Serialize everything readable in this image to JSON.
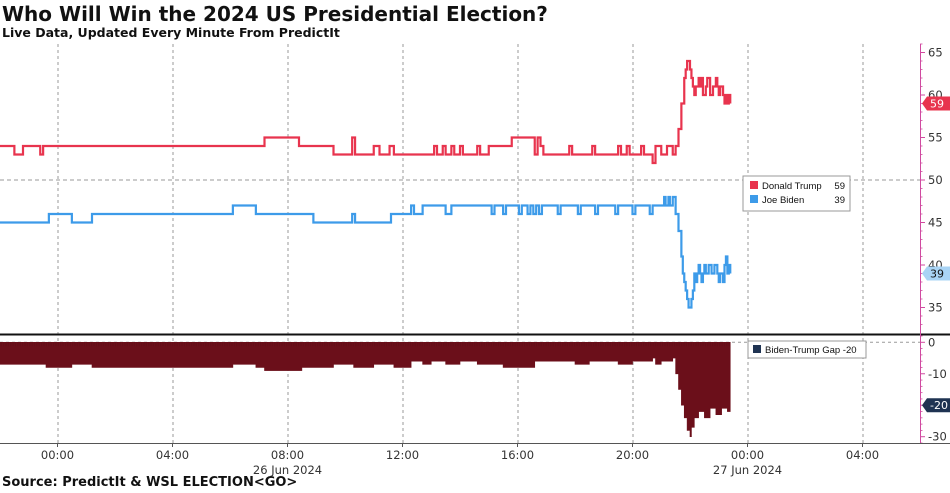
{
  "header": {
    "title": "Who Will Win the 2024 US Presidential Election?",
    "subtitle": "Live Data, Updated Every Minute From PredictIt"
  },
  "footer": {
    "source": "Source: PredictIt & WSL ELECTION<GO>"
  },
  "colors": {
    "trump": "#e8344e",
    "biden": "#3d9be9",
    "gap": "#6b0f1a",
    "grid": "#9a9a9a",
    "axis_magenta": "#d04aa0"
  },
  "chart_data": [
    {
      "type": "line",
      "title": "Who Will Win the 2024 US Presidential Election?",
      "x_unit": "hours since 00:00 26 Jun 2024",
      "x_range": [
        -2,
        30
      ],
      "y_range": [
        32,
        66
      ],
      "y_ticks": [
        35,
        40,
        45,
        50,
        55,
        60,
        65
      ],
      "x_tick_labels": [
        "00:00",
        "04:00",
        "08:00",
        "12:00",
        "16:00",
        "20:00",
        "00:00",
        "04:00"
      ],
      "x_ticks": [
        0,
        4,
        8,
        12,
        16,
        20,
        24,
        28
      ],
      "date_labels": [
        {
          "x": 8,
          "label": "26 Jun 2024"
        },
        {
          "x": 24,
          "label": "27 Jun 2024"
        }
      ],
      "reference_line": 50,
      "series": [
        {
          "name": "Donald Trump",
          "last_value": 59,
          "points": [
            [
              -2,
              54
            ],
            [
              -1.5,
              53
            ],
            [
              -1.2,
              54
            ],
            [
              -0.6,
              53
            ],
            [
              -0.5,
              54
            ],
            [
              7.1,
              54
            ],
            [
              7.2,
              55
            ],
            [
              8.3,
              55
            ],
            [
              8.4,
              54
            ],
            [
              9.5,
              54
            ],
            [
              9.6,
              53
            ],
            [
              10.2,
              53
            ],
            [
              10.25,
              55
            ],
            [
              10.35,
              53
            ],
            [
              10.9,
              53
            ],
            [
              11.0,
              54
            ],
            [
              11.2,
              53
            ],
            [
              11.5,
              53
            ],
            [
              11.55,
              54
            ],
            [
              11.7,
              53
            ],
            [
              13.0,
              53
            ],
            [
              13.1,
              54
            ],
            [
              13.2,
              53
            ],
            [
              13.4,
              54
            ],
            [
              13.5,
              53
            ],
            [
              13.7,
              54
            ],
            [
              13.8,
              53
            ],
            [
              14.0,
              54
            ],
            [
              14.1,
              53
            ],
            [
              14.5,
              53
            ],
            [
              14.6,
              54
            ],
            [
              14.7,
              53
            ],
            [
              15.0,
              54
            ],
            [
              15.7,
              54
            ],
            [
              15.8,
              55
            ],
            [
              16.5,
              55
            ],
            [
              16.6,
              53
            ],
            [
              16.7,
              55
            ],
            [
              16.8,
              54
            ],
            [
              16.9,
              53
            ],
            [
              17.7,
              53
            ],
            [
              17.8,
              54
            ],
            [
              17.9,
              53
            ],
            [
              18.5,
              53
            ],
            [
              18.6,
              54
            ],
            [
              18.7,
              53
            ],
            [
              19.4,
              53
            ],
            [
              19.5,
              54
            ],
            [
              19.6,
              53
            ],
            [
              19.8,
              54
            ],
            [
              19.9,
              53
            ],
            [
              20.2,
              53
            ],
            [
              20.3,
              54
            ],
            [
              20.4,
              53
            ],
            [
              20.6,
              53
            ],
            [
              20.7,
              52
            ],
            [
              20.8,
              54
            ],
            [
              21.0,
              53
            ],
            [
              21.2,
              54
            ],
            [
              21.4,
              53
            ],
            [
              21.5,
              54
            ],
            [
              21.6,
              56
            ],
            [
              21.7,
              59
            ],
            [
              21.8,
              62
            ],
            [
              21.85,
              63
            ],
            [
              21.9,
              64
            ],
            [
              22.0,
              63
            ],
            [
              22.05,
              62
            ],
            [
              22.1,
              61
            ],
            [
              22.15,
              60
            ],
            [
              22.2,
              61
            ],
            [
              22.3,
              62
            ],
            [
              22.35,
              61
            ],
            [
              22.4,
              62
            ],
            [
              22.45,
              60
            ],
            [
              22.55,
              61
            ],
            [
              22.6,
              62
            ],
            [
              22.7,
              60
            ],
            [
              22.8,
              61
            ],
            [
              22.9,
              62
            ],
            [
              22.95,
              61
            ],
            [
              23.0,
              60
            ],
            [
              23.05,
              61
            ],
            [
              23.15,
              60
            ],
            [
              23.2,
              59
            ],
            [
              23.25,
              60
            ],
            [
              23.3,
              59
            ],
            [
              23.35,
              60
            ],
            [
              23.4,
              59
            ]
          ]
        },
        {
          "name": "Joe Biden",
          "last_value": 39,
          "points": [
            [
              -2,
              45
            ],
            [
              -0.4,
              45
            ],
            [
              -0.3,
              46
            ],
            [
              0.4,
              46
            ],
            [
              0.5,
              45
            ],
            [
              1.1,
              45
            ],
            [
              1.2,
              46
            ],
            [
              6.0,
              46
            ],
            [
              6.1,
              47
            ],
            [
              6.8,
              47
            ],
            [
              6.9,
              46
            ],
            [
              8.8,
              46
            ],
            [
              8.9,
              45
            ],
            [
              10.2,
              45
            ],
            [
              10.25,
              46
            ],
            [
              10.35,
              45
            ],
            [
              11.5,
              45
            ],
            [
              11.6,
              46
            ],
            [
              12.2,
              46
            ],
            [
              12.3,
              47
            ],
            [
              12.4,
              46
            ],
            [
              12.6,
              46
            ],
            [
              12.7,
              47
            ],
            [
              13.4,
              47
            ],
            [
              13.5,
              46
            ],
            [
              13.6,
              46
            ],
            [
              13.7,
              47
            ],
            [
              15.0,
              47
            ],
            [
              15.1,
              46
            ],
            [
              15.2,
              47
            ],
            [
              15.4,
              47
            ],
            [
              15.5,
              46
            ],
            [
              15.6,
              47
            ],
            [
              16.0,
              47
            ],
            [
              16.05,
              46
            ],
            [
              16.15,
              47
            ],
            [
              16.3,
              47
            ],
            [
              16.35,
              46
            ],
            [
              16.45,
              47
            ],
            [
              16.55,
              46
            ],
            [
              16.65,
              47
            ],
            [
              16.75,
              46
            ],
            [
              16.85,
              47
            ],
            [
              17.3,
              47
            ],
            [
              17.4,
              46
            ],
            [
              17.5,
              47
            ],
            [
              18.0,
              47
            ],
            [
              18.1,
              46
            ],
            [
              18.2,
              47
            ],
            [
              18.6,
              47
            ],
            [
              18.7,
              46
            ],
            [
              18.8,
              47
            ],
            [
              19.3,
              47
            ],
            [
              19.4,
              46
            ],
            [
              19.5,
              47
            ],
            [
              19.9,
              47
            ],
            [
              20.0,
              46
            ],
            [
              20.1,
              47
            ],
            [
              20.5,
              47
            ],
            [
              20.6,
              46
            ],
            [
              20.7,
              47
            ],
            [
              21.0,
              47
            ],
            [
              21.1,
              48
            ],
            [
              21.15,
              47
            ],
            [
              21.25,
              48
            ],
            [
              21.3,
              47
            ],
            [
              21.4,
              48
            ],
            [
              21.5,
              46
            ],
            [
              21.6,
              44
            ],
            [
              21.7,
              41
            ],
            [
              21.75,
              39
            ],
            [
              21.8,
              38
            ],
            [
              21.85,
              37
            ],
            [
              21.9,
              36
            ],
            [
              21.95,
              35
            ],
            [
              22.05,
              36
            ],
            [
              22.1,
              37
            ],
            [
              22.15,
              39
            ],
            [
              22.2,
              38
            ],
            [
              22.25,
              39
            ],
            [
              22.3,
              40
            ],
            [
              22.35,
              39
            ],
            [
              22.4,
              38
            ],
            [
              22.45,
              39
            ],
            [
              22.5,
              40
            ],
            [
              22.55,
              39
            ],
            [
              22.65,
              40
            ],
            [
              22.75,
              39
            ],
            [
              22.85,
              40
            ],
            [
              22.95,
              39
            ],
            [
              23.0,
              38
            ],
            [
              23.05,
              39
            ],
            [
              23.15,
              38
            ],
            [
              23.2,
              40
            ],
            [
              23.25,
              41
            ],
            [
              23.3,
              39
            ],
            [
              23.35,
              40
            ],
            [
              23.4,
              39
            ]
          ]
        }
      ]
    },
    {
      "type": "area",
      "name": "Biden-Trump Gap",
      "last_value": -20,
      "x_range": [
        -2,
        30
      ],
      "y_range": [
        -32,
        2
      ],
      "y_ticks": [
        -30,
        -20,
        -10,
        0
      ],
      "points": [
        [
          -2,
          -7
        ],
        [
          -0.5,
          -7
        ],
        [
          -0.4,
          -8
        ],
        [
          0.4,
          -8
        ],
        [
          0.5,
          -7
        ],
        [
          1.1,
          -7
        ],
        [
          1.2,
          -8
        ],
        [
          6.0,
          -8
        ],
        [
          6.1,
          -7
        ],
        [
          6.8,
          -7
        ],
        [
          6.9,
          -8
        ],
        [
          7.1,
          -8
        ],
        [
          7.2,
          -9
        ],
        [
          8.4,
          -9
        ],
        [
          8.5,
          -8
        ],
        [
          9.5,
          -8
        ],
        [
          9.6,
          -7
        ],
        [
          10.2,
          -7
        ],
        [
          10.3,
          -8
        ],
        [
          10.9,
          -8
        ],
        [
          11.0,
          -7
        ],
        [
          11.6,
          -7
        ],
        [
          11.7,
          -8
        ],
        [
          12.2,
          -8
        ],
        [
          12.3,
          -6
        ],
        [
          12.6,
          -6
        ],
        [
          12.7,
          -7
        ],
        [
          13.0,
          -6
        ],
        [
          13.5,
          -7
        ],
        [
          14.0,
          -6
        ],
        [
          14.6,
          -7
        ],
        [
          15.0,
          -7
        ],
        [
          15.5,
          -8
        ],
        [
          15.8,
          -8
        ],
        [
          16.5,
          -8
        ],
        [
          16.6,
          -6
        ],
        [
          16.9,
          -6
        ],
        [
          17.7,
          -6
        ],
        [
          18.0,
          -7
        ],
        [
          18.5,
          -6
        ],
        [
          19.5,
          -7
        ],
        [
          20.0,
          -6
        ],
        [
          20.7,
          -5
        ],
        [
          20.8,
          -7
        ],
        [
          21.0,
          -6
        ],
        [
          21.4,
          -5
        ],
        [
          21.5,
          -10
        ],
        [
          21.6,
          -15
        ],
        [
          21.7,
          -20
        ],
        [
          21.8,
          -24
        ],
        [
          21.9,
          -28
        ],
        [
          22.0,
          -30
        ],
        [
          22.05,
          -27
        ],
        [
          22.15,
          -24
        ],
        [
          22.3,
          -22
        ],
        [
          22.5,
          -24
        ],
        [
          22.7,
          -21
        ],
        [
          22.9,
          -23
        ],
        [
          23.1,
          -21
        ],
        [
          23.3,
          -22
        ],
        [
          23.4,
          -20
        ]
      ]
    }
  ],
  "legend_top": [
    {
      "name": "Donald Trump",
      "value": "59"
    },
    {
      "name": "Joe Biden",
      "value": "39"
    }
  ],
  "legend_bottom": [
    {
      "name": "Biden-Trump Gap",
      "value": "-20"
    }
  ],
  "badges": {
    "trump": "59",
    "biden": "39",
    "gap": "-20"
  },
  "y_tick_labels_top": [
    "35",
    "40",
    "45",
    "50",
    "55",
    "60",
    "65"
  ],
  "y_tick_labels_bottom": [
    "-30",
    "-20",
    "-10",
    "0"
  ]
}
